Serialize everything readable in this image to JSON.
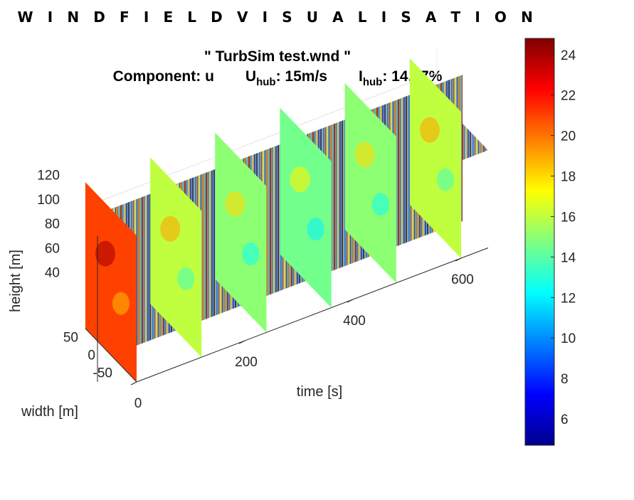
{
  "title": "W I N D F I E L D   V I S U A L I S A T I O N",
  "subtitle_file": "\" TurbSim test.wnd \"",
  "component_label": "Component: u",
  "uhub": {
    "symbol": "U",
    "subscript": "hub",
    "value": ": 15m/s"
  },
  "ihub": {
    "symbol": "I",
    "subscript": "hub",
    "value": ": 14.67%"
  },
  "chart_data": {
    "type": "slice3d",
    "title": "W I N D F I E L D   V I S U A L I S A T I O N",
    "subtitle": "\" TurbSim test.wnd \"",
    "xlabel": "time [s]",
    "ylabel": "width [m]",
    "zlabel": "height [m]",
    "x_ticks": [
      "0",
      "200",
      "400",
      "600"
    ],
    "y_ticks": [
      "50",
      "0",
      "-50"
    ],
    "z_ticks": [
      "120",
      "100",
      "80",
      "60",
      "40"
    ],
    "xlim": [
      0,
      650
    ],
    "ylim": [
      -75,
      75
    ],
    "zlim": [
      20,
      140
    ],
    "horizontal_slice_height": 100,
    "time_slices": [
      0,
      120,
      240,
      360,
      480,
      600
    ],
    "width_slice": 0,
    "colorbar": {
      "colormap": "jet",
      "range": [
        4.7,
        24.8
      ],
      "ticks": [
        "6",
        "8",
        "10",
        "12",
        "14",
        "16",
        "18",
        "20",
        "22",
        "24"
      ],
      "tick_values": [
        6,
        8,
        10,
        12,
        14,
        16,
        18,
        20,
        22,
        24
      ]
    },
    "slice_mean_speeds": [
      21,
      16,
      15,
      14.5,
      15,
      16
    ],
    "grid": true
  }
}
